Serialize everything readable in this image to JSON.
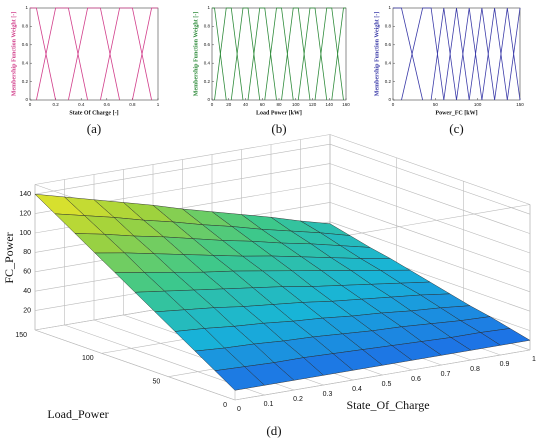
{
  "chart_data": [
    {
      "type": "line",
      "label": "(a)",
      "xlabel": "State Of Charge [-]",
      "ylabel": "Membership Function Weight [-]",
      "color": "#d2408c",
      "xlim": [
        0,
        1
      ],
      "ylim": [
        0,
        1
      ],
      "xticks": [
        0,
        0.2,
        0.4,
        0.6,
        0.8,
        1
      ],
      "yticks": [
        0,
        0.2,
        0.4,
        0.6,
        0.8,
        1
      ],
      "series": [
        {
          "x": [
            0,
            0.05,
            0.2
          ],
          "values": [
            1,
            1,
            0
          ]
        },
        {
          "x": [
            0.05,
            0.2,
            0.3,
            0.45
          ],
          "values": [
            0,
            1,
            1,
            0
          ]
        },
        {
          "x": [
            0.3,
            0.45,
            0.55,
            0.7
          ],
          "values": [
            0,
            1,
            1,
            0
          ]
        },
        {
          "x": [
            0.55,
            0.7,
            0.8,
            0.95
          ],
          "values": [
            0,
            1,
            1,
            0
          ]
        },
        {
          "x": [
            0.8,
            0.95,
            1
          ],
          "values": [
            0,
            1,
            1
          ]
        }
      ]
    },
    {
      "type": "line",
      "label": "(b)",
      "xlabel": "Load Power [kW]",
      "ylabel": "Membership Function Weight [-]",
      "color": "#2e8b3a",
      "xlim": [
        0,
        160
      ],
      "ylim": [
        0,
        1
      ],
      "xticks": [
        0,
        20,
        40,
        60,
        80,
        100,
        120,
        140,
        160
      ],
      "yticks": [
        0,
        0.2,
        0.4,
        0.6,
        0.8,
        1
      ],
      "series": [
        {
          "x": [
            0,
            3,
            17
          ],
          "values": [
            1,
            1,
            0
          ]
        },
        {
          "x": [
            3,
            17,
            23,
            37
          ],
          "values": [
            0,
            1,
            1,
            0
          ]
        },
        {
          "x": [
            23,
            37,
            43,
            57
          ],
          "values": [
            0,
            1,
            1,
            0
          ]
        },
        {
          "x": [
            43,
            57,
            63,
            77
          ],
          "values": [
            0,
            1,
            1,
            0
          ]
        },
        {
          "x": [
            63,
            77,
            83,
            97
          ],
          "values": [
            0,
            1,
            1,
            0
          ]
        },
        {
          "x": [
            83,
            97,
            103,
            117
          ],
          "values": [
            0,
            1,
            1,
            0
          ]
        },
        {
          "x": [
            103,
            117,
            123,
            137
          ],
          "values": [
            0,
            1,
            1,
            0
          ]
        },
        {
          "x": [
            123,
            137,
            143,
            157
          ],
          "values": [
            0,
            1,
            1,
            0
          ]
        },
        {
          "x": [
            143,
            157,
            160
          ],
          "values": [
            0,
            1,
            1
          ]
        }
      ]
    },
    {
      "type": "line",
      "label": "(c)",
      "xlabel": "Power_FC [kW]",
      "ylabel": "Membership Function Weight [-]",
      "color": "#3a3aa8",
      "xlim": [
        0,
        150
      ],
      "ylim": [
        0,
        1
      ],
      "xticks": [
        0,
        50,
        100,
        150
      ],
      "yticks": [
        0,
        0.2,
        0.4,
        0.6,
        0.8,
        1
      ],
      "series": [
        {
          "x": [
            0,
            10,
            35
          ],
          "values": [
            1,
            1,
            0
          ]
        },
        {
          "x": [
            10,
            35,
            45,
            60
          ],
          "values": [
            0,
            1,
            1,
            0
          ]
        },
        {
          "x": [
            45,
            60,
            75
          ],
          "values": [
            0,
            1,
            0
          ]
        },
        {
          "x": [
            60,
            75,
            90
          ],
          "values": [
            0,
            1,
            0
          ]
        },
        {
          "x": [
            75,
            90,
            105
          ],
          "values": [
            0,
            1,
            0
          ]
        },
        {
          "x": [
            90,
            105,
            120
          ],
          "values": [
            0,
            1,
            0
          ]
        },
        {
          "x": [
            105,
            120,
            135
          ],
          "values": [
            0,
            1,
            0
          ]
        },
        {
          "x": [
            120,
            135,
            150
          ],
          "values": [
            0,
            1,
            0
          ]
        },
        {
          "x": [
            135,
            150
          ],
          "values": [
            0,
            1
          ]
        }
      ]
    },
    {
      "type": "surface",
      "label": "(d)",
      "xlabel": "State_Of_Charge",
      "ylabel": "Load_Power",
      "zlabel": "FC_Power",
      "colormap": [
        "#1e6ee6",
        "#18b4d8",
        "#3cc88c",
        "#a0d23c",
        "#f0e628"
      ],
      "xlim": [
        0,
        1
      ],
      "ylim": [
        0,
        150
      ],
      "zlim": [
        0,
        150
      ],
      "xticks": [
        0,
        0.1,
        0.2,
        0.3,
        0.4,
        0.5,
        0.6,
        0.7,
        0.8,
        0.9,
        1
      ],
      "yticks": [
        0,
        50,
        100,
        150
      ],
      "zticks": [
        20,
        40,
        60,
        80,
        100,
        120,
        140
      ],
      "x": [
        0,
        0.1,
        0.2,
        0.3,
        0.4,
        0.5,
        0.6,
        0.7,
        0.8,
        0.9,
        1
      ],
      "y": [
        0,
        15,
        30,
        45,
        60,
        75,
        90,
        105,
        120,
        135,
        150
      ],
      "z": [
        [
          10,
          10,
          10,
          10,
          10,
          10,
          10,
          10,
          10,
          10,
          10
        ],
        [
          23,
          22,
          21,
          21,
          20,
          19,
          18,
          17,
          16,
          16,
          15
        ],
        [
          36,
          34,
          33,
          31,
          30,
          28,
          26,
          25,
          23,
          21,
          20
        ],
        [
          49,
          47,
          44,
          42,
          39,
          37,
          34,
          32,
          29,
          27,
          24
        ],
        [
          62,
          59,
          56,
          52,
          49,
          46,
          42,
          39,
          36,
          33,
          29
        ],
        [
          75,
          71,
          67,
          63,
          59,
          55,
          50,
          46,
          42,
          38,
          34
        ],
        [
          88,
          83,
          78,
          73,
          69,
          64,
          59,
          54,
          49,
          44,
          39
        ],
        [
          101,
          96,
          90,
          84,
          78,
          72,
          67,
          61,
          55,
          49,
          44
        ],
        [
          114,
          108,
          101,
          95,
          88,
          81,
          75,
          68,
          62,
          55,
          48
        ],
        [
          127,
          120,
          113,
          105,
          98,
          90,
          83,
          75,
          68,
          61,
          53
        ],
        [
          140,
          132,
          124,
          116,
          108,
          99,
          91,
          83,
          75,
          66,
          58
        ]
      ]
    }
  ]
}
